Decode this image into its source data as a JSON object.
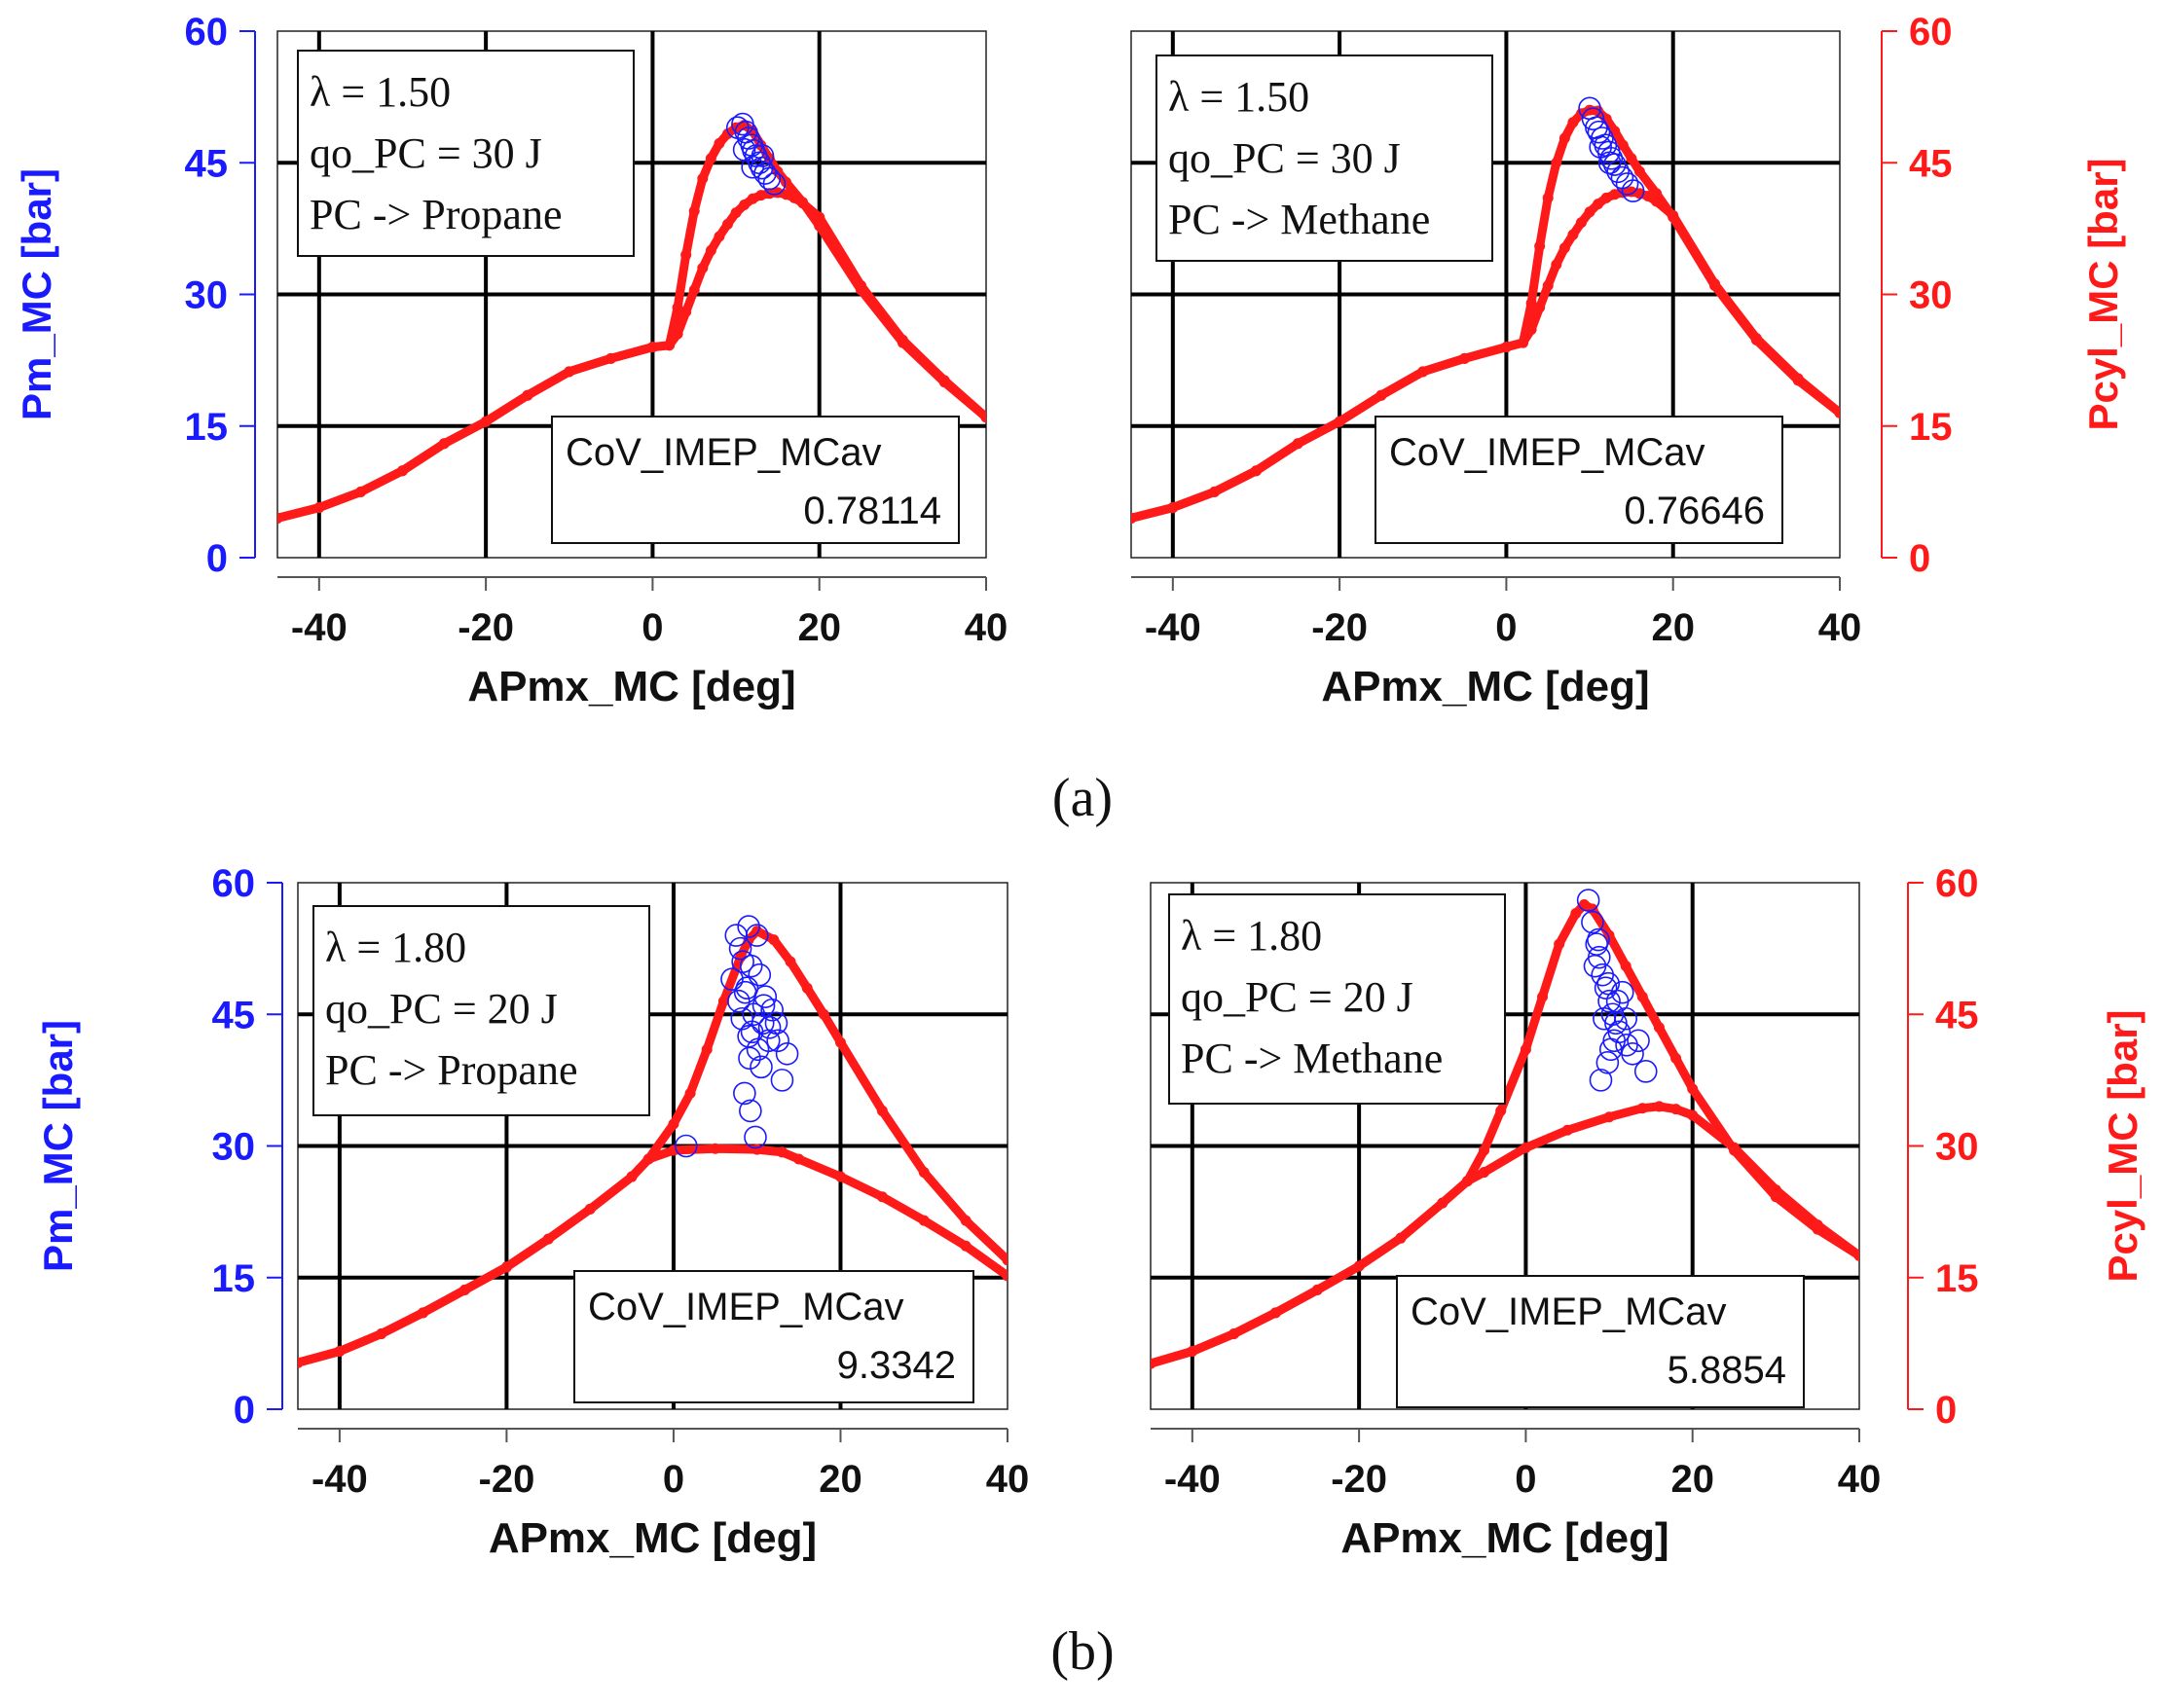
{
  "colors": {
    "left_axis": "#1a1aff",
    "right_axis": "#ff1a1a",
    "curve": "#ff1a1a",
    "points": "#1a1aff",
    "grid": "#000000"
  },
  "figure_labels": [
    "(a)",
    "(b)"
  ],
  "chart_data": [
    {
      "type": "scatter",
      "panel": "a",
      "xlabel": "APmx_MC [deg]",
      "ylabel_left": "Pm_MC [bar]",
      "ylabel_right": "",
      "xlim": [
        -45,
        40
      ],
      "ylim": [
        0,
        60
      ],
      "xticks": [
        "-40",
        "-20",
        "0",
        "20",
        "40"
      ],
      "yticks": [
        "0",
        "15",
        "30",
        "45",
        "60"
      ],
      "grid": true,
      "annotation": [
        "λ = 1.50",
        "qo_PC = 30 J",
        "PC -> Propane"
      ],
      "cov_label": "CoV_IMEP_MCav",
      "cov_value": "0.78114",
      "series": [
        {
          "kind": "pressure_trace",
          "x": [
            -45,
            -40,
            -35,
            -30,
            -25,
            -20,
            -15,
            -10,
            -5,
            0,
            2,
            3,
            4,
            5,
            6,
            7,
            8,
            9,
            10,
            11,
            12,
            13,
            14,
            15,
            16,
            18,
            20,
            25,
            30,
            35,
            40
          ],
          "y": [
            4.5,
            5.7,
            7.5,
            9.9,
            13.0,
            15.5,
            18.5,
            21.2,
            22.7,
            24.0,
            24.2,
            28.5,
            34.5,
            39.5,
            43.2,
            45.5,
            47.2,
            48.3,
            49.0,
            49.3,
            48.6,
            47.0,
            45.5,
            44.0,
            42.8,
            40.5,
            37.8,
            30.5,
            24.5,
            20.0,
            16.0
          ]
        },
        {
          "kind": "pressure_trace",
          "x": [
            -45,
            -40,
            -35,
            -30,
            -25,
            -20,
            -15,
            -10,
            -5,
            0,
            2,
            3,
            4,
            5,
            6,
            7,
            8,
            9,
            10,
            11,
            12,
            13,
            14,
            15,
            16,
            17,
            18,
            20,
            25,
            30,
            35,
            40
          ],
          "y": [
            4.5,
            5.7,
            7.5,
            9.9,
            13.0,
            15.5,
            18.5,
            21.2,
            22.7,
            24.0,
            24.2,
            25.5,
            28.0,
            30.5,
            33.0,
            35.0,
            36.6,
            38.0,
            39.3,
            40.2,
            40.9,
            41.3,
            41.5,
            41.6,
            41.4,
            41.0,
            40.4,
            38.8,
            31.0,
            24.8,
            20.2,
            16.0
          ]
        },
        {
          "kind": "cycle_points",
          "x": [
            10.2,
            10.8,
            11.2,
            11.5,
            11.9,
            12.1,
            12.4,
            12.8,
            13.1,
            13.5,
            14.0,
            14.6,
            11.0,
            12.0,
            13.2
          ],
          "y": [
            49.0,
            49.4,
            48.5,
            47.8,
            47.0,
            46.4,
            45.8,
            45.0,
            44.4,
            43.8,
            43.2,
            42.6,
            46.5,
            44.5,
            45.8
          ]
        }
      ]
    },
    {
      "type": "scatter",
      "panel": "a",
      "xlabel": "APmx_MC [deg]",
      "ylabel_left": "",
      "ylabel_right": "Pcyl_MC [bar]",
      "xlim": [
        -45,
        40
      ],
      "ylim": [
        0,
        60
      ],
      "xticks": [
        "-40",
        "-20",
        "0",
        "20",
        "40"
      ],
      "yticks": [
        "0",
        "15",
        "30",
        "45",
        "60"
      ],
      "grid": true,
      "annotation": [
        "λ = 1.50",
        "qo_PC = 30 J",
        "PC -> Methane"
      ],
      "cov_label": "CoV_IMEP_MCav",
      "cov_value": "0.76646",
      "series": [
        {
          "kind": "pressure_trace",
          "x": [
            -45,
            -40,
            -35,
            -30,
            -25,
            -20,
            -15,
            -10,
            -5,
            0,
            2,
            3,
            4,
            5,
            6,
            7,
            8,
            9,
            10,
            11,
            12,
            13,
            14,
            15,
            16,
            18,
            20,
            25,
            30,
            35,
            40
          ],
          "y": [
            4.5,
            5.7,
            7.5,
            9.9,
            13.0,
            15.5,
            18.5,
            21.2,
            22.7,
            24.0,
            24.5,
            29.0,
            35.5,
            41.0,
            45.0,
            47.8,
            49.6,
            50.6,
            51.0,
            50.9,
            50.0,
            48.6,
            47.0,
            45.5,
            44.0,
            41.5,
            38.8,
            31.0,
            24.8,
            20.2,
            16.5
          ]
        },
        {
          "kind": "pressure_trace",
          "x": [
            -45,
            -40,
            -35,
            -30,
            -25,
            -20,
            -15,
            -10,
            -5,
            0,
            2,
            3,
            4,
            5,
            6,
            7,
            8,
            9,
            10,
            11,
            12,
            13,
            14,
            15,
            16,
            17,
            18,
            20,
            25,
            30,
            35,
            40
          ],
          "y": [
            4.5,
            5.7,
            7.5,
            9.9,
            13.0,
            15.5,
            18.5,
            21.2,
            22.7,
            24.0,
            24.5,
            26.0,
            28.5,
            31.0,
            33.4,
            35.3,
            36.8,
            38.2,
            39.4,
            40.3,
            41.0,
            41.4,
            41.6,
            41.7,
            41.5,
            41.2,
            40.6,
            39.0,
            31.2,
            25.0,
            20.4,
            16.5
          ]
        },
        {
          "kind": "cycle_points",
          "x": [
            10.0,
            10.4,
            10.8,
            11.1,
            11.5,
            11.9,
            12.3,
            12.6,
            13.0,
            13.4,
            13.9,
            14.5,
            15.2,
            11.3,
            12.4
          ],
          "y": [
            51.2,
            50.0,
            49.0,
            48.5,
            47.8,
            47.0,
            46.2,
            45.5,
            44.8,
            44.0,
            43.3,
            42.6,
            41.8,
            46.8,
            45.0
          ]
        }
      ]
    },
    {
      "type": "scatter",
      "panel": "b",
      "xlabel": "APmx_MC [deg]",
      "ylabel_left": "Pm_MC [bar]",
      "ylabel_right": "",
      "xlim": [
        -45,
        40
      ],
      "ylim": [
        0,
        60
      ],
      "xticks": [
        "-40",
        "-20",
        "0",
        "20",
        "40"
      ],
      "yticks": [
        "0",
        "15",
        "30",
        "45",
        "60"
      ],
      "grid": true,
      "annotation": [
        "λ = 1.80",
        "qo_PC = 20 J",
        "PC -> Propane"
      ],
      "cov_label": "CoV_IMEP_MCav",
      "cov_value": "9.3342",
      "series": [
        {
          "kind": "pressure_trace",
          "x": [
            -45,
            -40,
            -35,
            -30,
            -25,
            -20,
            -15,
            -10,
            -5,
            -3,
            0,
            2,
            4,
            6,
            8,
            9,
            10,
            12,
            14,
            16,
            18,
            20,
            25,
            30,
            35,
            40
          ],
          "y": [
            5.3,
            6.6,
            8.6,
            11.0,
            13.6,
            16.2,
            19.4,
            22.8,
            26.5,
            28.5,
            32.5,
            36.0,
            41.0,
            46.5,
            51.5,
            53.5,
            54.5,
            53.5,
            51.0,
            48.0,
            45.0,
            41.8,
            34.0,
            27.0,
            21.5,
            17.0
          ]
        },
        {
          "kind": "pressure_trace",
          "x": [
            -45,
            -40,
            -35,
            -30,
            -25,
            -20,
            -15,
            -10,
            -5,
            -3,
            0,
            5,
            10,
            13,
            15,
            20,
            25,
            30,
            35,
            40
          ],
          "y": [
            5.3,
            6.6,
            8.6,
            11.0,
            13.6,
            16.2,
            19.4,
            22.8,
            26.5,
            28.5,
            29.5,
            29.7,
            29.6,
            29.3,
            28.5,
            26.5,
            24.2,
            21.5,
            18.6,
            15.2
          ]
        },
        {
          "kind": "cycle_points",
          "x": [
            1.5,
            7.0,
            7.5,
            8.0,
            8.3,
            8.6,
            9.0,
            9.3,
            9.6,
            10.0,
            10.3,
            10.7,
            11.0,
            11.4,
            11.8,
            12.3,
            13.0,
            13.6,
            8.5,
            9.2,
            9.8,
            10.5,
            9.0,
            8.8,
            9.4,
            10.1,
            10.8,
            11.5,
            12.5,
            8.2,
            9.1,
            7.8
          ],
          "y": [
            30.0,
            49.0,
            54.0,
            52.5,
            51.0,
            47.5,
            55.0,
            50.5,
            45.0,
            54.0,
            49.5,
            44.0,
            47.0,
            42.0,
            45.5,
            44.0,
            37.5,
            40.5,
            36.0,
            34.0,
            31.0,
            39.0,
            42.5,
            48.0,
            43.0,
            41.0,
            46.0,
            43.5,
            42.0,
            44.5,
            40.0,
            46.5
          ]
        }
      ]
    },
    {
      "type": "scatter",
      "panel": "b",
      "xlabel": "APmx_MC [deg]",
      "ylabel_left": "",
      "ylabel_right": "Pcyl_MC [bar]",
      "xlim": [
        -45,
        40
      ],
      "ylim": [
        0,
        60
      ],
      "xticks": [
        "-40",
        "-20",
        "0",
        "20",
        "40"
      ],
      "yticks": [
        "0",
        "15",
        "30",
        "45",
        "60"
      ],
      "grid": true,
      "annotation": [
        "λ = 1.80",
        "qo_PC = 20 J",
        "PC -> Methane"
      ],
      "cov_label": "CoV_IMEP_MCav",
      "cov_value": "5.8854",
      "series": [
        {
          "kind": "pressure_trace",
          "x": [
            -45,
            -40,
            -35,
            -30,
            -25,
            -20,
            -15,
            -10,
            -7,
            -5,
            -3,
            0,
            2,
            4,
            6,
            7,
            8,
            10,
            12,
            14,
            16,
            18,
            20,
            25,
            30,
            35,
            40
          ],
          "y": [
            5.2,
            6.6,
            8.6,
            11.0,
            13.6,
            16.3,
            19.5,
            23.5,
            26.0,
            29.5,
            34.0,
            41.0,
            47.0,
            53.0,
            56.5,
            57.5,
            57.0,
            54.0,
            50.5,
            47.0,
            43.5,
            40.0,
            36.5,
            29.5,
            24.2,
            20.5,
            17.5
          ]
        },
        {
          "kind": "pressure_trace",
          "x": [
            -45,
            -40,
            -35,
            -30,
            -25,
            -20,
            -15,
            -10,
            -7,
            -5,
            0,
            5,
            10,
            14,
            16,
            18,
            20,
            25,
            30,
            35,
            40
          ],
          "y": [
            5.2,
            6.6,
            8.6,
            11.0,
            13.6,
            16.3,
            19.5,
            23.5,
            26.0,
            27.0,
            29.8,
            31.8,
            33.3,
            34.3,
            34.5,
            34.2,
            33.5,
            29.8,
            25.0,
            21.0,
            17.5
          ]
        },
        {
          "kind": "cycle_points",
          "x": [
            7.5,
            8.0,
            8.5,
            8.8,
            9.2,
            9.6,
            10.0,
            10.4,
            10.8,
            11.2,
            11.6,
            12.1,
            12.8,
            13.5,
            14.4,
            9.0,
            9.8,
            10.6,
            8.3,
            9.4,
            10.2,
            11.0,
            12.0,
            8.7,
            9.9
          ],
          "y": [
            58.0,
            55.5,
            53.0,
            51.5,
            49.5,
            48.0,
            46.5,
            45.0,
            44.0,
            43.0,
            47.5,
            41.5,
            40.5,
            42.0,
            38.5,
            37.5,
            39.5,
            42.0,
            50.5,
            44.5,
            41.0,
            46.5,
            44.5,
            53.5,
            48.5
          ]
        }
      ]
    }
  ]
}
